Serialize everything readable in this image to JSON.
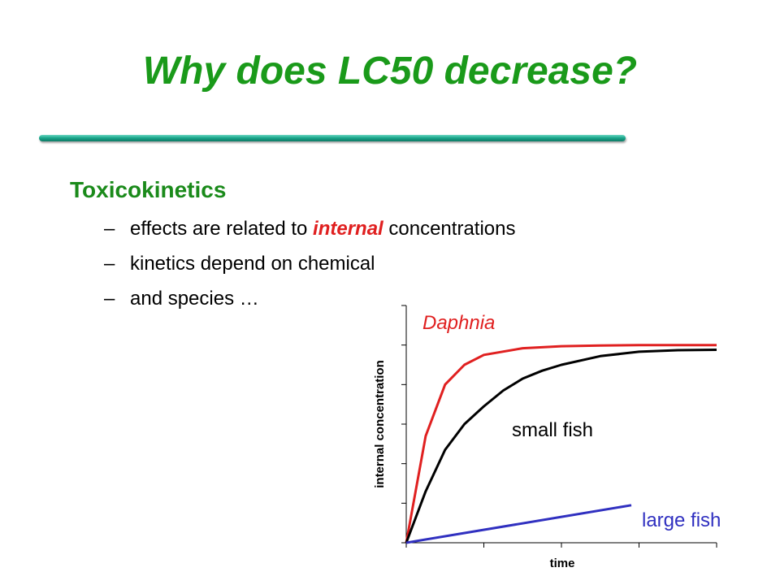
{
  "slide": {
    "title": "Why does LC50 decrease?",
    "heading": "Toxicokinetics",
    "bullets": [
      {
        "dash": "–",
        "before": "effects are related to ",
        "emph": "internal",
        "after": " concentrations"
      },
      {
        "dash": "–",
        "text": "kinetics depend on chemical"
      },
      {
        "dash": "–",
        "text": "and species …"
      }
    ]
  },
  "colors": {
    "title": "#1a9a1a",
    "heading": "#1a8a1a",
    "rule": "#1aa88c",
    "daphnia": "#e02020",
    "small_fish": "#000000",
    "large_fish": "#3030c0"
  },
  "chart_data": {
    "type": "line",
    "xlabel": "time",
    "ylabel": "internal concentration",
    "xlim": [
      0,
      4
    ],
    "ylim": [
      0,
      6
    ],
    "grid": false,
    "series": [
      {
        "name": "Daphnia",
        "color": "#e02020",
        "x": [
          0,
          0.25,
          0.5,
          0.75,
          1.0,
          1.5,
          2.0,
          2.5,
          3.0,
          3.5,
          4.0
        ],
        "y": [
          0,
          2.7,
          4.0,
          4.5,
          4.75,
          4.92,
          4.97,
          4.99,
          5.0,
          5.0,
          5.0
        ]
      },
      {
        "name": "small fish",
        "color": "#000000",
        "x": [
          0,
          0.25,
          0.5,
          0.75,
          1.0,
          1.25,
          1.5,
          1.75,
          2.0,
          2.5,
          3.0,
          3.5,
          4.0
        ],
        "y": [
          0,
          1.3,
          2.35,
          3.0,
          3.45,
          3.85,
          4.15,
          4.35,
          4.5,
          4.72,
          4.83,
          4.87,
          4.88
        ]
      },
      {
        "name": "large fish",
        "color": "#3030c0",
        "x": [
          0,
          2.9
        ],
        "y": [
          0,
          0.95
        ]
      }
    ]
  }
}
